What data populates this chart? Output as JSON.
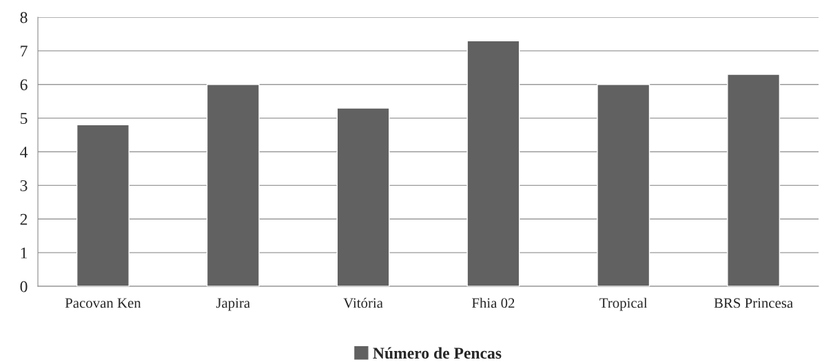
{
  "chart_data": {
    "type": "bar",
    "categories": [
      "Pacovan Ken",
      "Japira",
      "Vitória",
      "Fhia 02",
      "Tropical",
      "BRS Princesa"
    ],
    "series": [
      {
        "name": "Número de Pencas",
        "color": "#616161",
        "values": [
          4.8,
          6.0,
          5.3,
          7.3,
          6.0,
          6.3
        ]
      }
    ],
    "ylim": [
      0,
      8
    ],
    "yticks": [
      0,
      1,
      2,
      3,
      4,
      5,
      6,
      7,
      8
    ],
    "grid": "y",
    "legend": "bottom"
  }
}
